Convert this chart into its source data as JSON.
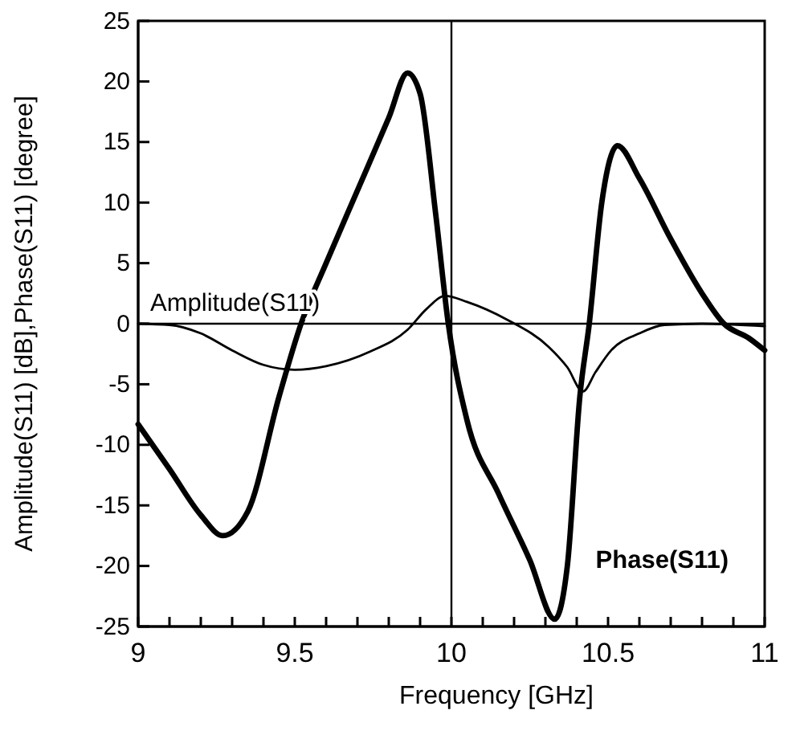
{
  "chart_data": {
    "type": "line",
    "xlabel": "Frequency [GHz]",
    "ylabel": "Amplitude(S11) [dB],Phase(S11) [degree]",
    "xlim": [
      9,
      11
    ],
    "ylim": [
      -25,
      25
    ],
    "xticks": [
      9,
      {
        "value": 9.1,
        "label": null
      },
      {
        "value": 9.2,
        "label": null
      },
      {
        "value": 9.3,
        "label": null
      },
      {
        "value": 9.4,
        "label": null
      },
      9.5,
      {
        "value": 9.6,
        "label": null
      },
      {
        "value": 9.7,
        "label": null
      },
      {
        "value": 9.8,
        "label": null
      },
      {
        "value": 9.9,
        "label": null
      },
      10,
      {
        "value": 10.1,
        "label": null
      },
      {
        "value": 10.2,
        "label": null
      },
      {
        "value": 10.3,
        "label": null
      },
      {
        "value": 10.4,
        "label": null
      },
      10.5,
      {
        "value": 10.6,
        "label": null
      },
      {
        "value": 10.7,
        "label": null
      },
      {
        "value": 10.8,
        "label": null
      },
      {
        "value": 10.9,
        "label": null
      },
      11
    ],
    "yticks": [
      -25,
      -20,
      -15,
      -10,
      -5,
      0,
      5,
      10,
      15,
      20,
      25
    ],
    "series": [
      {
        "name": "Phase(S11)",
        "color": "#000000",
        "x": [
          9,
          9.1,
          9.2,
          9.27,
          9.35,
          9.45,
          9.52,
          9.6,
          9.7,
          9.8,
          9.86,
          9.9,
          9.95,
          9.99,
          10.05,
          10.15,
          10.25,
          10.33,
          10.37,
          10.41,
          10.44,
          10.48,
          10.53,
          10.6,
          10.7,
          10.8,
          10.87,
          10.95,
          11
        ],
        "values": [
          -8.3,
          -12,
          -15.8,
          -17.5,
          -15.5,
          -6,
          0,
          5,
          11,
          17,
          20.7,
          19,
          9,
          0,
          -8,
          -14,
          -19.5,
          -24.4,
          -20,
          -6,
          0,
          10,
          14.7,
          12,
          7,
          2.5,
          0,
          -1.2,
          -2.2
        ]
      },
      {
        "name": "Amplitude(S11)",
        "color": "#000000",
        "x": [
          9,
          9.1,
          9.2,
          9.3,
          9.4,
          9.5,
          9.6,
          9.74,
          9.86,
          9.92,
          9.98,
          10.05,
          10.18,
          10.31,
          10.37,
          10.42,
          10.46,
          10.51,
          10.6,
          10.68,
          10.8,
          11
        ],
        "values": [
          0,
          -0.1,
          -0.8,
          -2.2,
          -3.4,
          -3.8,
          -3.5,
          -2.3,
          -0.5,
          1.2,
          2.3,
          1.8,
          0.3,
          -1.9,
          -3.6,
          -5.6,
          -4,
          -2.2,
          -0.8,
          -0.1,
          0,
          -0.2
        ]
      }
    ],
    "ref_lines": [
      {
        "axis": "x",
        "value": 10,
        "label": null,
        "color": "#000000"
      },
      {
        "axis": "y",
        "value": 0,
        "label": null,
        "color": "#000000"
      }
    ],
    "grid": false,
    "marker": "none",
    "line_style": "solid"
  }
}
